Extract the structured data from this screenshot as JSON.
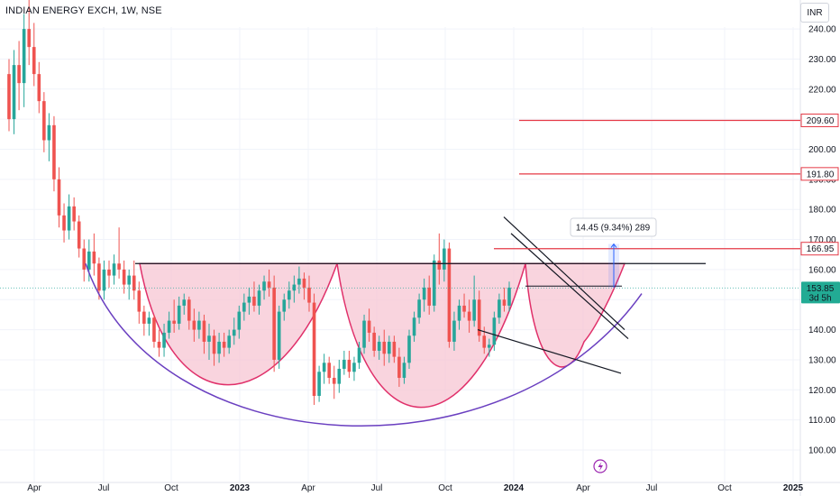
{
  "header": {
    "symbol_title": "INDIAN ENERGY EXCH, 1W, NSE",
    "currency": "INR"
  },
  "colors": {
    "up": "#26a69a",
    "down": "#ef5350",
    "resistance_line": "#e53946",
    "cup_fill": "#f7c6d3",
    "cup_stroke": "#e0306a",
    "rounding_bottom": "#6a3fc0",
    "measure_arrow": "#2962ff"
  },
  "chart_data": {
    "type": "candlestick",
    "symbol": "INDIAN ENERGY EXCH",
    "interval": "1W",
    "exchange": "NSE",
    "currency": "INR",
    "y_ticks": [
      100,
      110,
      120,
      130,
      140,
      150,
      160,
      170,
      180,
      190,
      200,
      210,
      220,
      230,
      240
    ],
    "y_tick_labels": [
      "100.00",
      "110.00",
      "120.00",
      "130.00",
      "140.00",
      "150.00",
      "160.00",
      "170.00",
      "180.00",
      "190.00",
      "200.00",
      "210.00",
      "220.00",
      "230.00",
      "240.00"
    ],
    "x_ticks": [
      "Apr",
      "Jul",
      "Oct",
      "2023",
      "Apr",
      "Jul",
      "Oct",
      "2024",
      "Apr",
      "Jul",
      "Oct",
      "2025"
    ],
    "last_price": {
      "value": 153.85,
      "label": "153.85",
      "countdown": "3d 5h"
    },
    "price_levels": [
      {
        "value": 209.6,
        "label": "209.60"
      },
      {
        "value": 191.8,
        "label": "191.80"
      },
      {
        "value": 166.95,
        "label": "166.95"
      }
    ],
    "neckline": 162,
    "measurement": {
      "label": "14.45 (9.34%) 289",
      "from": 154,
      "to": 168.5
    },
    "candles_ohlc": [
      [
        225,
        230,
        206,
        210
      ],
      [
        210,
        233,
        205,
        228
      ],
      [
        228,
        236,
        213,
        222
      ],
      [
        222,
        245,
        214,
        240
      ],
      [
        240,
        255,
        228,
        234
      ],
      [
        234,
        242,
        221,
        225
      ],
      [
        225,
        229,
        212,
        216
      ],
      [
        216,
        219,
        199,
        203
      ],
      [
        203,
        212,
        196,
        208
      ],
      [
        208,
        211,
        186,
        190
      ],
      [
        190,
        194,
        174,
        178
      ],
      [
        178,
        182,
        169,
        173
      ],
      [
        173,
        185,
        170,
        181
      ],
      [
        181,
        184,
        173,
        176
      ],
      [
        176,
        178,
        164,
        167
      ],
      [
        167,
        170,
        156,
        160
      ],
      [
        160,
        170,
        156,
        166
      ],
      [
        166,
        172,
        158,
        162
      ],
      [
        162,
        164,
        150,
        153
      ],
      [
        153,
        163,
        150,
        160
      ],
      [
        160,
        163,
        154,
        158
      ],
      [
        158,
        165,
        155,
        162
      ],
      [
        162,
        174,
        157,
        160
      ],
      [
        160,
        163,
        152,
        155
      ],
      [
        155,
        160,
        150,
        158
      ],
      [
        158,
        163,
        150,
        153
      ],
      [
        153,
        156,
        142,
        146
      ],
      [
        146,
        148,
        138,
        142
      ],
      [
        142,
        146,
        138,
        144
      ],
      [
        144,
        145,
        134,
        136
      ],
      [
        136,
        140,
        131,
        134
      ],
      [
        134,
        142,
        131,
        139
      ],
      [
        139,
        146,
        137,
        143
      ],
      [
        143,
        150,
        139,
        142
      ],
      [
        142,
        151,
        140,
        148
      ],
      [
        148,
        152,
        145,
        150
      ],
      [
        150,
        151,
        140,
        143
      ],
      [
        143,
        147,
        136,
        140
      ],
      [
        140,
        146,
        137,
        143
      ],
      [
        143,
        145,
        132,
        136
      ],
      [
        136,
        142,
        130,
        138
      ],
      [
        138,
        140,
        128,
        132
      ],
      [
        132,
        139,
        129,
        136
      ],
      [
        136,
        139,
        131,
        134
      ],
      [
        134,
        140,
        132,
        138
      ],
      [
        138,
        144,
        135,
        140
      ],
      [
        140,
        148,
        137,
        146
      ],
      [
        146,
        152,
        143,
        149
      ],
      [
        149,
        154,
        145,
        151
      ],
      [
        151,
        156,
        146,
        148
      ],
      [
        148,
        155,
        145,
        153
      ],
      [
        153,
        158,
        150,
        156
      ],
      [
        156,
        160,
        151,
        154
      ],
      [
        154,
        158,
        126,
        130
      ],
      [
        130,
        148,
        127,
        146
      ],
      [
        146,
        152,
        143,
        150
      ],
      [
        150,
        156,
        147,
        153
      ],
      [
        153,
        158,
        149,
        155
      ],
      [
        155,
        161,
        152,
        157
      ],
      [
        157,
        159,
        150,
        154
      ],
      [
        154,
        158,
        146,
        149
      ],
      [
        149,
        152,
        115,
        118
      ],
      [
        118,
        128,
        116,
        126
      ],
      [
        126,
        132,
        122,
        129
      ],
      [
        129,
        131,
        122,
        124
      ],
      [
        124,
        128,
        117,
        122
      ],
      [
        122,
        130,
        119,
        127
      ],
      [
        127,
        133,
        125,
        130
      ],
      [
        130,
        133,
        124,
        126
      ],
      [
        126,
        131,
        123,
        129
      ],
      [
        129,
        136,
        127,
        134
      ],
      [
        134,
        145,
        132,
        143
      ],
      [
        143,
        147,
        136,
        139
      ],
      [
        139,
        141,
        131,
        133
      ],
      [
        133,
        138,
        130,
        136
      ],
      [
        136,
        140,
        128,
        132
      ],
      [
        132,
        138,
        129,
        136
      ],
      [
        136,
        138,
        129,
        131
      ],
      [
        131,
        134,
        121,
        124
      ],
      [
        124,
        131,
        122,
        129
      ],
      [
        129,
        140,
        127,
        138
      ],
      [
        138,
        146,
        136,
        144
      ],
      [
        144,
        152,
        142,
        150
      ],
      [
        150,
        157,
        146,
        154
      ],
      [
        154,
        158,
        145,
        148
      ],
      [
        148,
        165,
        146,
        163
      ],
      [
        163,
        172,
        155,
        160
      ],
      [
        160,
        170,
        156,
        167
      ],
      [
        167,
        169,
        134,
        136
      ],
      [
        136,
        146,
        133,
        143
      ],
      [
        143,
        150,
        140,
        148
      ],
      [
        148,
        152,
        144,
        146
      ],
      [
        146,
        150,
        139,
        143
      ],
      [
        143,
        158,
        141,
        150
      ],
      [
        150,
        153,
        136,
        138
      ],
      [
        138,
        141,
        132,
        134
      ],
      [
        134,
        137,
        131,
        135
      ],
      [
        135,
        146,
        133,
        144
      ],
      [
        144,
        152,
        142,
        150
      ],
      [
        150,
        154,
        146,
        148
      ],
      [
        148,
        156,
        146,
        154
      ]
    ]
  }
}
